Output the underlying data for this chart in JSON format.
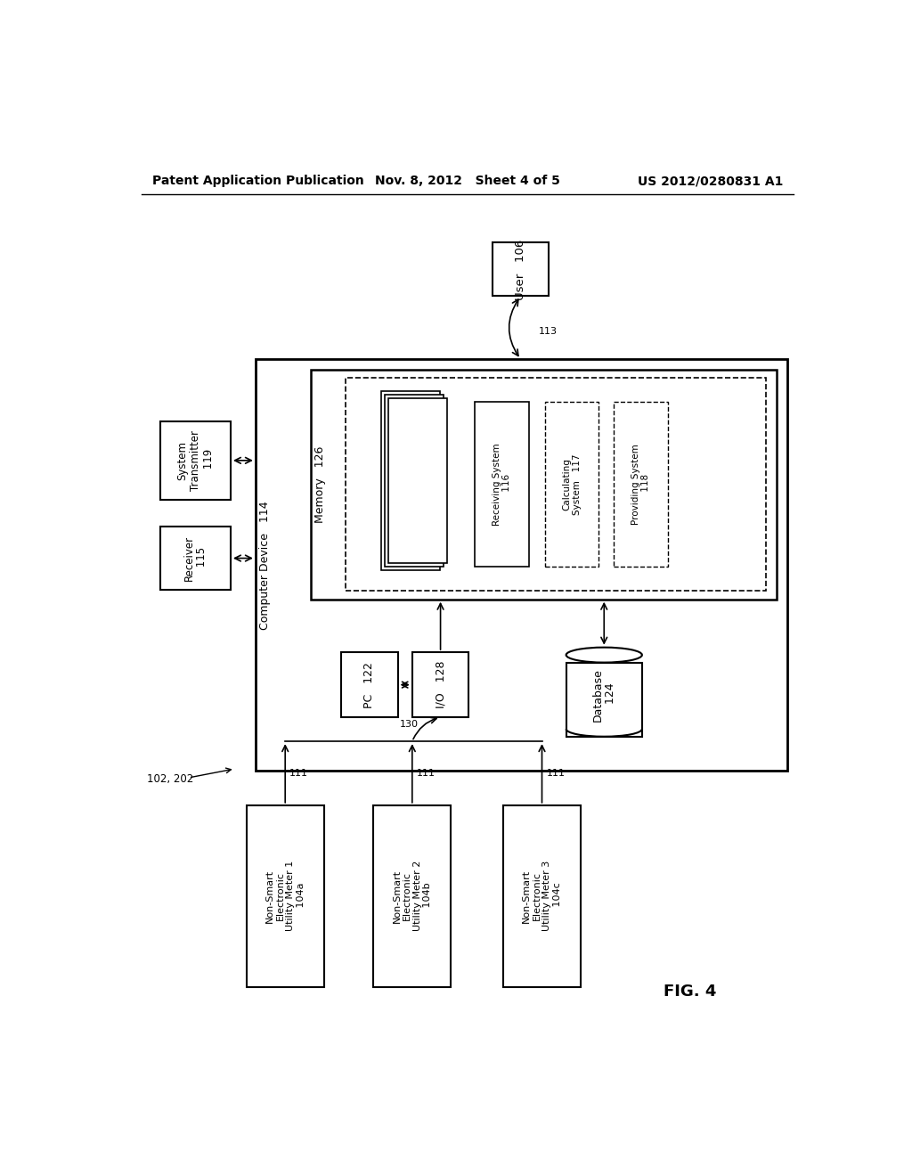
{
  "title_left": "Patent Application Publication",
  "title_mid": "Nov. 8, 2012   Sheet 4 of 5",
  "title_right": "US 2012/0280831 A1",
  "fig_label": "FIG. 4",
  "ref_label": "102, 202",
  "background": "#ffffff",
  "text_color": "#000000"
}
